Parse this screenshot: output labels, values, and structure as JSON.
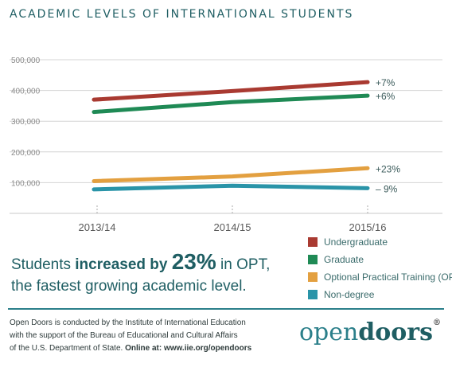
{
  "title": "ACADEMIC LEVELS OF INTERNATIONAL STUDENTS",
  "headline": {
    "part1": "Students ",
    "bold": "increased by ",
    "big": "23%",
    "part2": " in OPT,",
    "line2": "the fastest growing academic level."
  },
  "footer": {
    "line1": "Open Doors is conducted by the Institute of International Education",
    "line2": "with the support of the Bureau of Educational and Cultural Affairs",
    "line3_text": "of the U.S. Department of State. ",
    "line3_bold": "Online at: www.iie.org/opendoors"
  },
  "logo": {
    "open": "open",
    "doors": "doors",
    "mark": "®"
  },
  "chart_data": {
    "type": "line",
    "categories": [
      "2013/14",
      "2014/15",
      "2015/16"
    ],
    "ylim": [
      0,
      500000
    ],
    "yticks": [
      100000,
      200000,
      300000,
      400000,
      500000
    ],
    "ytick_labels": [
      "100,000",
      "200,000",
      "300,000",
      "400,000",
      "500,000"
    ],
    "grid": true,
    "legend_position": "bottom-right",
    "series": [
      {
        "name": "Undergraduate",
        "color": "#a93a31",
        "values": [
          370000,
          398000,
          427000
        ],
        "label": "+7%"
      },
      {
        "name": "Graduate",
        "color": "#1f8a55",
        "values": [
          330000,
          362000,
          383000
        ],
        "label": "+6%"
      },
      {
        "name": "Optional Practical Training (OPT)",
        "color": "#e3a040",
        "values": [
          105000,
          120000,
          147000
        ],
        "label": "+23%"
      },
      {
        "name": "Non-degree",
        "color": "#2a94a8",
        "values": [
          78000,
          90000,
          82000
        ],
        "label": "– 9%"
      }
    ]
  }
}
